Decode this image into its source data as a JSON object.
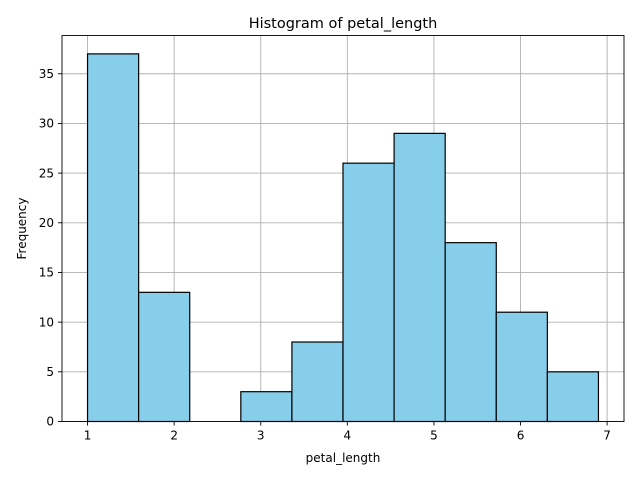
{
  "chart_data": {
    "type": "bar",
    "title": "Histogram of petal_length",
    "xlabel": "petal_length",
    "ylabel": "Frequency",
    "bin_edges": [
      1.0,
      1.59,
      2.18,
      2.77,
      3.36,
      3.95,
      4.54,
      5.13,
      5.72,
      6.31,
      6.9
    ],
    "values": [
      37,
      13,
      0,
      3,
      8,
      26,
      29,
      18,
      11,
      5
    ],
    "xlim": [
      0.705,
      7.195
    ],
    "ylim": [
      0,
      38.85
    ],
    "xticks": [
      1,
      2,
      3,
      4,
      5,
      6,
      7
    ],
    "yticks": [
      0,
      5,
      10,
      15,
      20,
      25,
      30,
      35
    ],
    "grid": true,
    "bar_color": "#87ceeb",
    "edge_color": "#000000"
  }
}
